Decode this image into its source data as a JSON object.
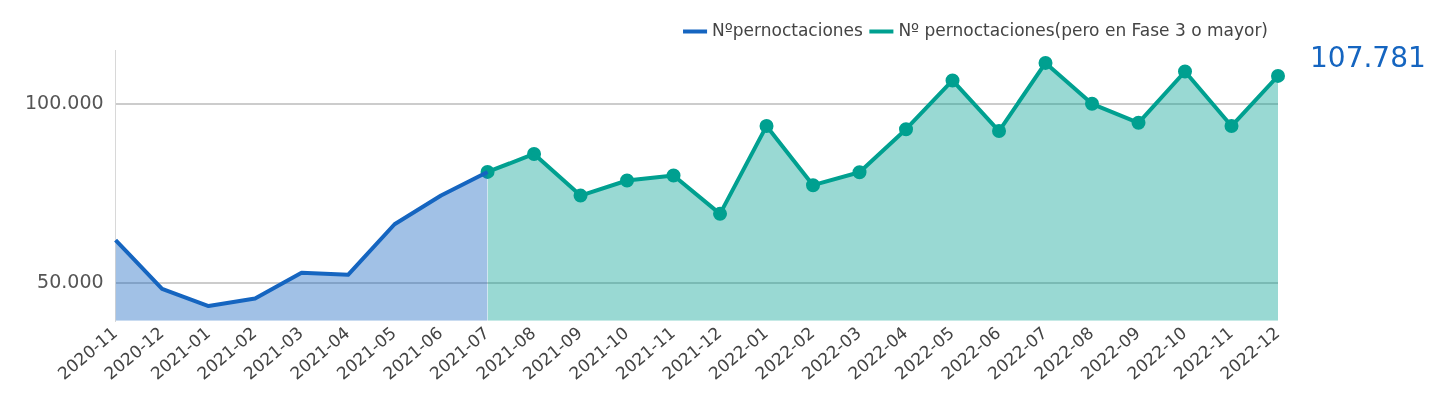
{
  "chart_data": {
    "type": "area",
    "categories": [
      "2020-11",
      "2020-12",
      "2021-01",
      "2021-02",
      "2021-03",
      "2021-04",
      "2021-05",
      "2021-06",
      "2021-07",
      "2021-08",
      "2021-09",
      "2021-10",
      "2021-11",
      "2021-12",
      "2022-01",
      "2022-02",
      "2022-03",
      "2022-04",
      "2022-05",
      "2022-06",
      "2022-07",
      "2022-08",
      "2022-09",
      "2022-10",
      "2022-11",
      "2022-12"
    ],
    "series": [
      {
        "name": "Nºpernoctaciones",
        "color": "#1565c0",
        "marker": "none",
        "values": [
          62000,
          48400,
          43600,
          45700,
          52900,
          52300,
          66400,
          74400,
          81000,
          null,
          null,
          null,
          null,
          null,
          null,
          null,
          null,
          null,
          null,
          null,
          null,
          null,
          null,
          null,
          null,
          null
        ]
      },
      {
        "name": "Nº pernoctaciones(pero en Fase 3 o mayor)",
        "color": "#00a090",
        "marker": "circle",
        "values": [
          null,
          null,
          null,
          null,
          null,
          null,
          null,
          null,
          81000,
          86000,
          74400,
          78600,
          80000,
          69300,
          93800,
          77300,
          80900,
          92900,
          106500,
          92400,
          111400,
          100000,
          94700,
          109000,
          93800,
          107781
        ],
        "value_labels": [
          null,
          null,
          null,
          null,
          null,
          null,
          null,
          null,
          null,
          null,
          null,
          null,
          null,
          null,
          null,
          null,
          null,
          null,
          null,
          null,
          null,
          null,
          null,
          null,
          null,
          "107.781"
        ]
      }
    ],
    "ylim": [
      39500,
      115000
    ],
    "yticks": [
      {
        "value": 50000,
        "label": "50.000"
      },
      {
        "value": 100000,
        "label": "100.000"
      }
    ],
    "grid": "y",
    "legend": "top right"
  }
}
